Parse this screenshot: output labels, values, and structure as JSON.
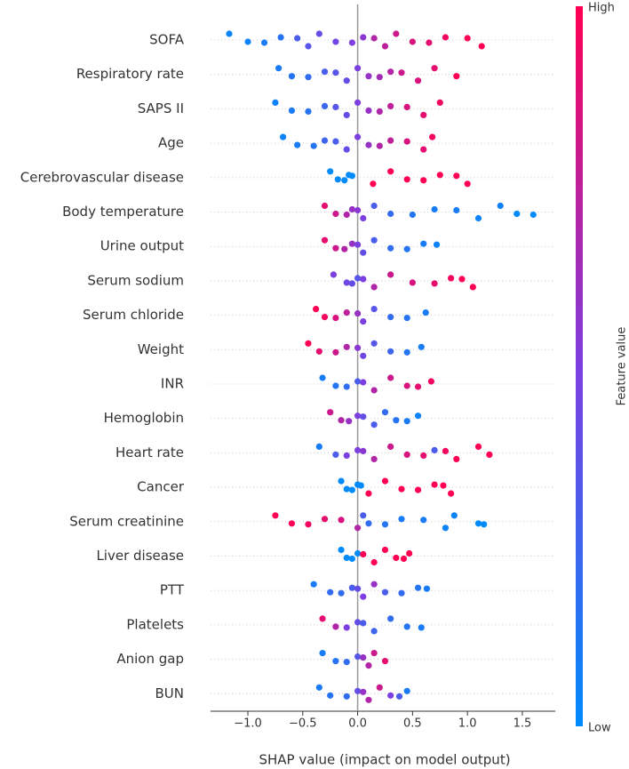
{
  "chart_data": {
    "type": "beeswarm",
    "x_label": "SHAP value (impact on model output)",
    "xlim": [
      -1.34,
      1.8
    ],
    "xticks": [
      {
        "value": -1,
        "label": "−1.0"
      },
      {
        "value": -0.5,
        "label": "−0.5"
      },
      {
        "value": 0,
        "label": "0.0"
      },
      0.5,
      {
        "value": 1,
        "label": "1.0"
      },
      1.5
    ],
    "colorbar": {
      "label": "Feature value",
      "high": "High",
      "low": "Low",
      "colors": [
        "#008bfb",
        "#7c3fe0",
        "#ff0052"
      ]
    },
    "features": [
      {
        "name": "SOFA",
        "shap": [
          -1.17,
          -1.0,
          -0.85,
          -0.7,
          -0.55,
          -0.45,
          -0.35,
          -0.2,
          -0.05,
          0.05,
          0.15,
          0.25,
          0.35,
          0.5,
          0.65,
          0.8,
          1.0,
          1.13
        ],
        "feature_value": [
          0.05,
          0.05,
          0.1,
          0.15,
          0.3,
          0.35,
          0.4,
          0.45,
          0.5,
          0.55,
          0.7,
          0.75,
          0.8,
          0.85,
          0.9,
          0.95,
          1,
          1
        ]
      },
      {
        "name": "Respiratory rate",
        "shap": [
          -0.72,
          -0.6,
          -0.45,
          -0.3,
          -0.2,
          -0.1,
          0,
          0.1,
          0.2,
          0.3,
          0.4,
          0.55,
          0.7,
          0.9
        ],
        "feature_value": [
          0.1,
          0.15,
          0.2,
          0.3,
          0.35,
          0.4,
          0.5,
          0.6,
          0.65,
          0.7,
          0.8,
          0.85,
          0.9,
          1
        ]
      },
      {
        "name": "SAPS II",
        "shap": [
          -0.75,
          -0.6,
          -0.45,
          -0.3,
          -0.2,
          -0.1,
          0,
          0.1,
          0.2,
          0.3,
          0.45,
          0.6,
          0.75
        ],
        "feature_value": [
          0.05,
          0.1,
          0.15,
          0.25,
          0.35,
          0.4,
          0.5,
          0.6,
          0.7,
          0.75,
          0.85,
          0.9,
          0.95
        ]
      },
      {
        "name": "Age",
        "shap": [
          -0.68,
          -0.55,
          -0.4,
          -0.3,
          -0.2,
          -0.1,
          0,
          0.1,
          0.2,
          0.3,
          0.45,
          0.6,
          0.68
        ],
        "feature_value": [
          0.05,
          0.1,
          0.15,
          0.25,
          0.3,
          0.4,
          0.5,
          0.6,
          0.7,
          0.75,
          0.85,
          0.9,
          0.95
        ]
      },
      {
        "name": "Cerebrovascular disease",
        "shap": [
          -0.25,
          -0.18,
          -0.12,
          -0.08,
          -0.05,
          0.14,
          0.3,
          0.45,
          0.6,
          0.75,
          0.9,
          1.0
        ],
        "feature_value": [
          0,
          0,
          0,
          0,
          0,
          1,
          1,
          1,
          1,
          1,
          1,
          1
        ]
      },
      {
        "name": "Body temperature",
        "shap": [
          -0.3,
          -0.2,
          -0.1,
          -0.05,
          0,
          0.05,
          0.15,
          0.3,
          0.5,
          0.7,
          0.9,
          1.1,
          1.3,
          1.45,
          1.6
        ],
        "feature_value": [
          0.9,
          0.8,
          0.7,
          0.6,
          0.55,
          0.5,
          0.3,
          0.2,
          0.15,
          0.1,
          0.1,
          0.05,
          0.05,
          0,
          0
        ]
      },
      {
        "name": "Urine output",
        "shap": [
          -0.3,
          -0.2,
          -0.12,
          -0.05,
          0,
          0.05,
          0.15,
          0.3,
          0.45,
          0.6,
          0.72
        ],
        "feature_value": [
          0.9,
          0.8,
          0.7,
          0.6,
          0.5,
          0.4,
          0.3,
          0.2,
          0.15,
          0.1,
          0.05
        ]
      },
      {
        "name": "Serum sodium",
        "shap": [
          -0.22,
          -0.1,
          -0.05,
          0,
          0.05,
          0.15,
          0.3,
          0.5,
          0.7,
          0.85,
          0.95,
          1.05
        ],
        "feature_value": [
          0.5,
          0.45,
          0.4,
          0.35,
          0.5,
          0.7,
          0.8,
          0.85,
          0.9,
          0.95,
          1,
          1
        ]
      },
      {
        "name": "Serum chloride",
        "shap": [
          -0.38,
          -0.3,
          -0.2,
          -0.1,
          0,
          0.05,
          0.15,
          0.3,
          0.45,
          0.62
        ],
        "feature_value": [
          1,
          0.95,
          0.85,
          0.75,
          0.6,
          0.5,
          0.35,
          0.2,
          0.15,
          0.1
        ]
      },
      {
        "name": "Weight",
        "shap": [
          -0.45,
          -0.35,
          -0.2,
          -0.1,
          0,
          0.05,
          0.15,
          0.3,
          0.45,
          0.58
        ],
        "feature_value": [
          1,
          0.9,
          0.8,
          0.7,
          0.55,
          0.45,
          0.35,
          0.25,
          0.15,
          0.1
        ]
      },
      {
        "name": "INR",
        "shap": [
          -0.32,
          -0.2,
          -0.1,
          0,
          0.05,
          0.15,
          0.3,
          0.45,
          0.55,
          0.67
        ],
        "feature_value": [
          0.1,
          0.15,
          0.2,
          0.3,
          0.5,
          0.7,
          0.8,
          0.85,
          0.9,
          0.95
        ]
      },
      {
        "name": "Hemoglobin",
        "shap": [
          -0.25,
          -0.15,
          -0.08,
          0,
          0.05,
          0.15,
          0.25,
          0.35,
          0.45,
          0.55
        ],
        "feature_value": [
          0.8,
          0.7,
          0.6,
          0.5,
          0.4,
          0.3,
          0.2,
          0.15,
          0.1,
          0.05
        ]
      },
      {
        "name": "Heart rate",
        "shap": [
          -0.35,
          -0.2,
          -0.1,
          0,
          0.05,
          0.15,
          0.3,
          0.45,
          0.6,
          0.7,
          0.8,
          0.9,
          1.1,
          1.2
        ],
        "feature_value": [
          0.1,
          0.3,
          0.5,
          0.5,
          0.55,
          0.7,
          0.8,
          0.85,
          0.9,
          0.3,
          0.95,
          1,
          1,
          1
        ]
      },
      {
        "name": "Cancer",
        "shap": [
          -0.15,
          -0.1,
          -0.05,
          0,
          0.03,
          0.1,
          0.25,
          0.4,
          0.55,
          0.7,
          0.78,
          0.85
        ],
        "feature_value": [
          0,
          0,
          0,
          0,
          0,
          1,
          1,
          1,
          1,
          1,
          1,
          1
        ]
      },
      {
        "name": "Serum creatinine",
        "shap": [
          -0.75,
          -0.6,
          -0.45,
          -0.3,
          -0.15,
          0,
          0.05,
          0.1,
          0.25,
          0.4,
          0.6,
          0.8,
          0.88,
          1.1,
          1.15
        ],
        "feature_value": [
          1,
          1,
          0.95,
          0.9,
          0.85,
          0.7,
          0.3,
          0.2,
          0.15,
          0.1,
          0.1,
          0.05,
          0.05,
          0,
          0
        ]
      },
      {
        "name": "Liver disease",
        "shap": [
          -0.15,
          -0.1,
          -0.05,
          0,
          0.05,
          0.15,
          0.25,
          0.35,
          0.42,
          0.47
        ],
        "feature_value": [
          0,
          0,
          0,
          0,
          1,
          1,
          1,
          1,
          1,
          1
        ]
      },
      {
        "name": "PTT",
        "shap": [
          -0.4,
          -0.25,
          -0.15,
          -0.05,
          0,
          0.05,
          0.15,
          0.25,
          0.4,
          0.55,
          0.63
        ],
        "feature_value": [
          0.1,
          0.2,
          0.2,
          0.3,
          0.4,
          0.5,
          0.6,
          0.3,
          0.2,
          0.15,
          0.1
        ]
      },
      {
        "name": "Platelets",
        "shap": [
          -0.32,
          -0.2,
          -0.1,
          0,
          0.05,
          0.15,
          0.3,
          0.45,
          0.58
        ],
        "feature_value": [
          0.9,
          0.7,
          0.5,
          0.4,
          0.3,
          0.25,
          0.2,
          0.15,
          0.1
        ]
      },
      {
        "name": "Anion gap",
        "shap": [
          -0.32,
          -0.2,
          -0.1,
          0,
          0.05,
          0.1,
          0.15,
          0.25
        ],
        "feature_value": [
          0.1,
          0.15,
          0.2,
          0.35,
          0.6,
          0.7,
          0.8,
          0.9
        ]
      },
      {
        "name": "BUN",
        "shap": [
          -0.35,
          -0.25,
          -0.1,
          0,
          0.05,
          0.1,
          0.2,
          0.3,
          0.38,
          0.45
        ],
        "feature_value": [
          0.1,
          0.15,
          0.2,
          0.4,
          0.6,
          0.7,
          0.8,
          0.5,
          0.3,
          0.1
        ]
      }
    ]
  }
}
